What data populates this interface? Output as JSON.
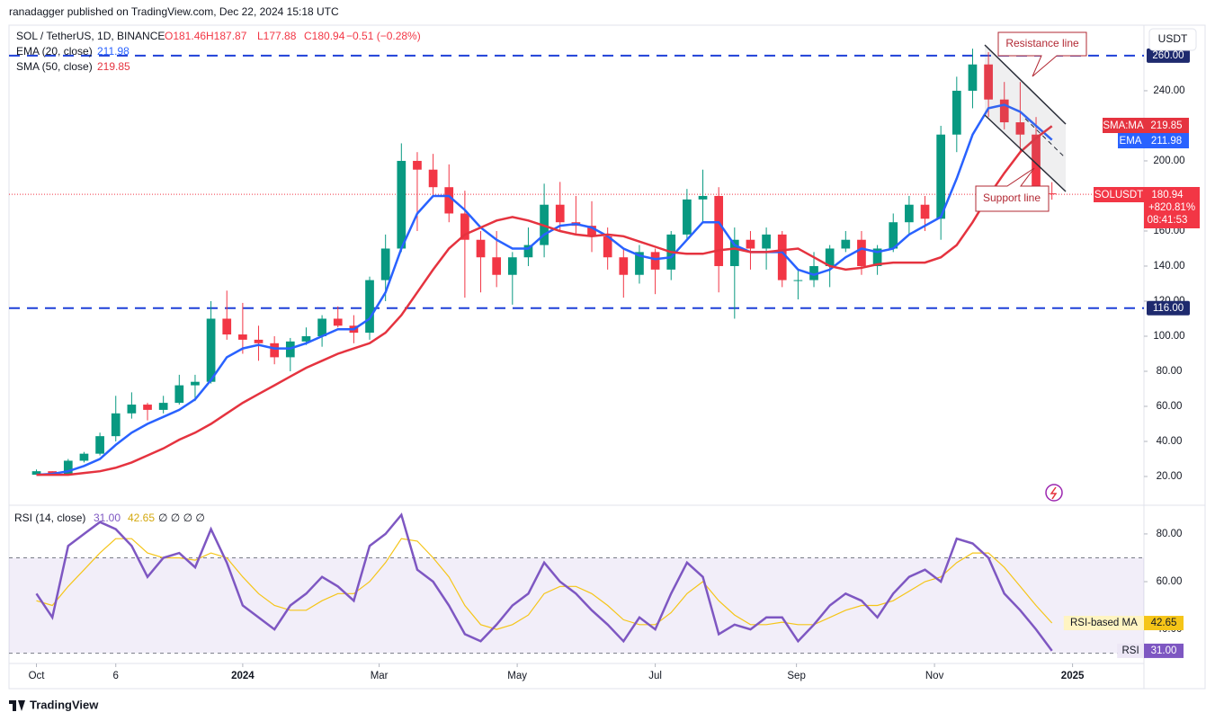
{
  "header": {
    "publisher": "ranadagger published on TradingView.com, Dec 22, 2024 15:18 UTC",
    "symbol": "SOL / TetherUS, 1D, BINANCE",
    "ohlc": [
      "O181.46",
      "H187.87",
      "L177.88",
      "C180.94",
      "−0.51 (−0.28%)"
    ],
    "ema_legend": "EMA (20, close)",
    "ema_value": "211.98",
    "sma_legend": "SMA (50, close)",
    "sma_value": "219.85",
    "currency": "USDT",
    "sma_tag": "SMA:MA",
    "ema_tag": "EMA",
    "symbol_tag": "SOLUSDT",
    "price": "180.94",
    "change": "+820.81%",
    "countdown": "08:41:53"
  },
  "chart_data": [
    {
      "type": "candlestick",
      "categories": [
        null,
        null,
        null,
        null,
        null,
        null,
        null,
        null,
        null,
        null,
        null,
        null,
        null,
        null,
        null,
        null,
        null,
        null,
        null,
        null,
        null,
        null,
        null,
        null,
        null,
        null,
        null,
        null,
        null,
        null,
        null,
        null,
        null,
        null,
        null,
        null,
        null,
        null,
        null,
        null,
        null,
        null,
        null,
        null,
        null,
        null,
        null,
        null,
        null,
        null,
        null,
        null,
        null,
        null,
        null,
        null,
        null,
        null,
        null,
        null,
        null,
        null,
        null,
        null,
        null
      ],
      "open": [
        21,
        23,
        21.5,
        29,
        33,
        43,
        56,
        61,
        58,
        62,
        72,
        74,
        110,
        101,
        98,
        96,
        88,
        97,
        100,
        110,
        106,
        102,
        132,
        150,
        200,
        195,
        185,
        170,
        155,
        145,
        135,
        145,
        152,
        175,
        165,
        163,
        157,
        145,
        135,
        148,
        138,
        158,
        178,
        180,
        140,
        155,
        150,
        158,
        132,
        132,
        140,
        150,
        155,
        140,
        150,
        165,
        175,
        167,
        215,
        240,
        255,
        235,
        222,
        215,
        181.46
      ],
      "high": [
        24,
        23,
        30,
        34,
        45,
        66,
        68,
        62,
        66,
        78,
        78,
        120,
        126,
        119,
        106,
        100,
        99,
        105,
        112,
        117,
        112,
        134,
        158,
        210,
        205,
        204,
        198,
        183,
        160,
        160,
        148,
        162,
        187,
        188,
        180,
        177,
        162,
        150,
        152,
        150,
        160,
        184,
        195,
        185,
        162,
        160,
        162,
        160,
        138,
        148,
        152,
        160,
        160,
        152,
        170,
        180,
        180,
        220,
        248,
        264,
        262,
        245,
        245,
        225,
        187.87
      ],
      "low": [
        21,
        20.5,
        21,
        28,
        32,
        40,
        53,
        52,
        56,
        61,
        63,
        73,
        98,
        90,
        86,
        84,
        80,
        95,
        94,
        105,
        96,
        98,
        120,
        148,
        160,
        180,
        165,
        122,
        125,
        128,
        118,
        140,
        145,
        160,
        158,
        148,
        138,
        122,
        130,
        124,
        132,
        155,
        165,
        125,
        110,
        138,
        138,
        128,
        121,
        128,
        128,
        148,
        135,
        135,
        148,
        158,
        160,
        155,
        205,
        230,
        225,
        218,
        205,
        176,
        177.88
      ],
      "close": [
        23,
        21.5,
        29,
        33,
        43,
        56,
        61,
        58,
        62,
        72,
        74,
        110,
        101,
        98,
        96,
        88,
        97,
        100,
        110,
        106,
        102,
        132,
        150,
        200,
        195,
        185,
        170,
        155,
        145,
        135,
        145,
        152,
        175,
        165,
        163,
        157,
        145,
        135,
        148,
        138,
        158,
        178,
        180,
        140,
        155,
        150,
        158,
        132,
        132,
        140,
        150,
        155,
        140,
        150,
        165,
        175,
        167,
        215,
        240,
        255,
        235,
        222,
        215,
        185,
        180.94
      ],
      "up_color": "#089981",
      "down_color": "#f23645",
      "series": [
        {
          "name": "EMA",
          "color": "#2962ff",
          "values": [
            21,
            21.5,
            23,
            26,
            30,
            38,
            45,
            50,
            54,
            58,
            64,
            75,
            88,
            93,
            95,
            93,
            93,
            96,
            100,
            104,
            104,
            110,
            125,
            150,
            170,
            180,
            180,
            172,
            162,
            155,
            150,
            150,
            158,
            163,
            164,
            162,
            157,
            150,
            146,
            144,
            145,
            155,
            165,
            165,
            152,
            148,
            148,
            148,
            138,
            135,
            138,
            145,
            150,
            148,
            150,
            158,
            163,
            168,
            190,
            215,
            230,
            232,
            228,
            220,
            211.98
          ]
        },
        {
          "name": "SMA",
          "color": "#e5333f",
          "values": [
            21,
            21,
            21,
            22,
            23,
            25,
            28,
            32,
            36,
            41,
            45,
            50,
            56,
            62,
            67,
            72,
            77,
            82,
            86,
            90,
            93,
            96,
            102,
            112,
            125,
            138,
            150,
            158,
            162,
            166,
            168,
            166,
            163,
            160,
            158,
            157,
            158,
            157,
            154,
            151,
            148,
            147,
            147,
            149,
            150,
            148,
            148,
            149,
            150,
            145,
            140,
            138,
            139,
            141,
            142,
            142,
            142,
            145,
            152,
            165,
            180,
            193,
            205,
            213,
            219.85
          ]
        }
      ],
      "xlim": [
        -1.73,
        69.8
      ],
      "xticks": [
        {
          "value": 0,
          "label": "Oct"
        },
        {
          "value": 5,
          "label": "6"
        },
        {
          "value": 13,
          "label": "2024"
        },
        {
          "value": 21.6,
          "label": "Mar"
        },
        {
          "value": 30.3,
          "label": "May"
        },
        {
          "value": 39,
          "label": "Jul"
        },
        {
          "value": 47.9,
          "label": "Sep"
        },
        {
          "value": 56.6,
          "label": "Nov"
        },
        {
          "value": 65.3,
          "label": "2025"
        }
      ],
      "ylim": [
        3.6,
        277.4
      ],
      "yticks": [
        {
          "value": 20,
          "label": "20.00"
        },
        {
          "value": 40,
          "label": "40.00"
        },
        {
          "value": 60,
          "label": "60.00"
        },
        {
          "value": 80,
          "label": "80.00"
        },
        {
          "value": 100,
          "label": "100.00"
        },
        {
          "value": 120,
          "label": "120.00"
        },
        {
          "value": 140,
          "label": "140.00"
        },
        {
          "value": 160,
          "label": "160.00"
        },
        {
          "value": 200,
          "label": "200.00"
        },
        {
          "value": 240,
          "label": "240.00"
        }
      ],
      "hlines": [
        {
          "value": 260,
          "label": "260.00"
        },
        {
          "value": 116,
          "label": "116.00"
        }
      ],
      "last_price": 180.94,
      "annotations": [
        "Resistance line",
        "Support line"
      ]
    },
    {
      "type": "line",
      "title": "RSI (14, close)",
      "legend_values": [
        "31.00",
        "42.65",
        "∅ ∅ ∅ ∅"
      ],
      "series": [
        {
          "name": "RSI",
          "color": "#7e57c2",
          "values": [
            55,
            45,
            75,
            80,
            85,
            82,
            75,
            62,
            70,
            72,
            66,
            82,
            68,
            50,
            45,
            40,
            50,
            55,
            62,
            58,
            52,
            75,
            80,
            88,
            65,
            60,
            50,
            38,
            35,
            42,
            50,
            55,
            68,
            60,
            55,
            48,
            42,
            35,
            45,
            40,
            55,
            68,
            62,
            38,
            42,
            40,
            45,
            45,
            35,
            42,
            50,
            55,
            52,
            45,
            55,
            62,
            65,
            60,
            78,
            76,
            70,
            55,
            48,
            40,
            31
          ],
          "value_label": "31.00"
        },
        {
          "name": "RSI-based MA",
          "color": "#f5c518",
          "values": [
            52,
            50,
            58,
            65,
            72,
            78,
            78,
            72,
            70,
            70,
            69,
            72,
            70,
            62,
            55,
            50,
            48,
            48,
            52,
            55,
            55,
            60,
            68,
            78,
            77,
            70,
            62,
            50,
            42,
            40,
            42,
            46,
            55,
            58,
            58,
            55,
            50,
            44,
            42,
            42,
            47,
            55,
            60,
            52,
            46,
            42,
            42,
            43,
            42,
            42,
            45,
            48,
            50,
            50,
            52,
            56,
            60,
            62,
            68,
            72,
            72,
            66,
            58,
            50,
            42.65
          ],
          "value_label": "42.65"
        }
      ],
      "ylim": [
        25.7,
        90.9
      ],
      "yticks": [
        {
          "value": 40,
          "label": "40.00"
        },
        {
          "value": 60,
          "label": "60.00"
        },
        {
          "value": 80,
          "label": "80.00"
        }
      ],
      "bands": [
        70,
        30
      ],
      "band_fill": "rgba(126,87,194,0.10)"
    }
  ],
  "footer": "TradingView"
}
